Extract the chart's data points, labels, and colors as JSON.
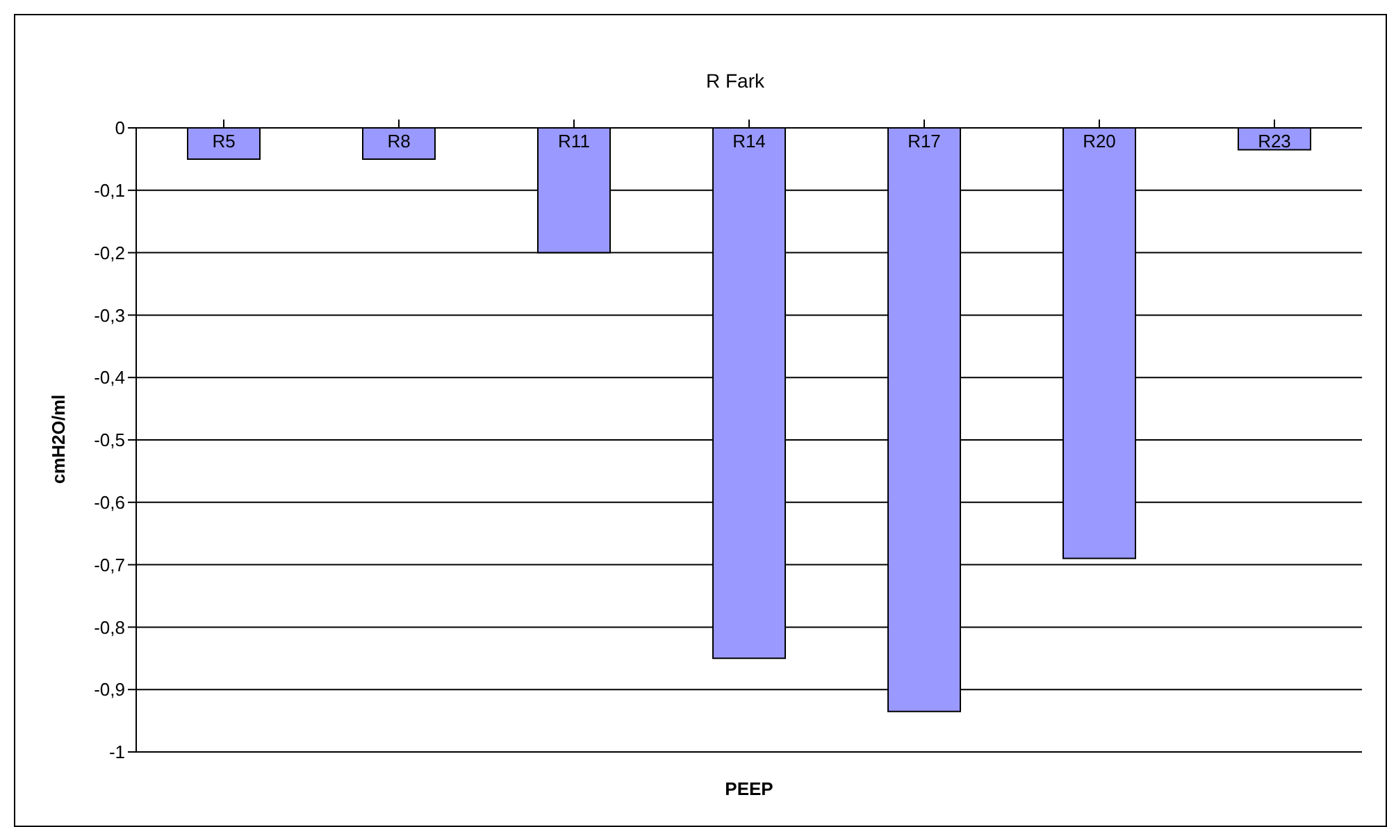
{
  "chart_data": {
    "type": "bar",
    "title": "R Fark",
    "xlabel": "PEEP",
    "ylabel": "cmH2O/ml",
    "categories": [
      "R5",
      "R8",
      "R11",
      "R14",
      "R17",
      "R20",
      "R23"
    ],
    "values": [
      -0.05,
      -0.05,
      -0.2,
      -0.85,
      -0.935,
      -0.69,
      -0.035
    ],
    "color": "#9999ff",
    "ylim": [
      -1,
      0
    ],
    "yticks": [
      {
        "value": -1,
        "label": "-1"
      },
      {
        "value": -0.9,
        "label": "-0,9"
      },
      {
        "value": -0.8,
        "label": "-0,8"
      },
      {
        "value": -0.7,
        "label": "-0,7"
      },
      {
        "value": -0.6,
        "label": "-0,6"
      },
      {
        "value": -0.5,
        "label": "-0,5"
      },
      {
        "value": -0.4,
        "label": "-0,4"
      },
      {
        "value": -0.3,
        "label": "-0,3"
      },
      {
        "value": -0.2,
        "label": "-0,2"
      },
      {
        "value": -0.1,
        "label": "-0,1"
      },
      {
        "value": 0,
        "label": "0"
      }
    ],
    "grid": "y",
    "legend": false
  }
}
